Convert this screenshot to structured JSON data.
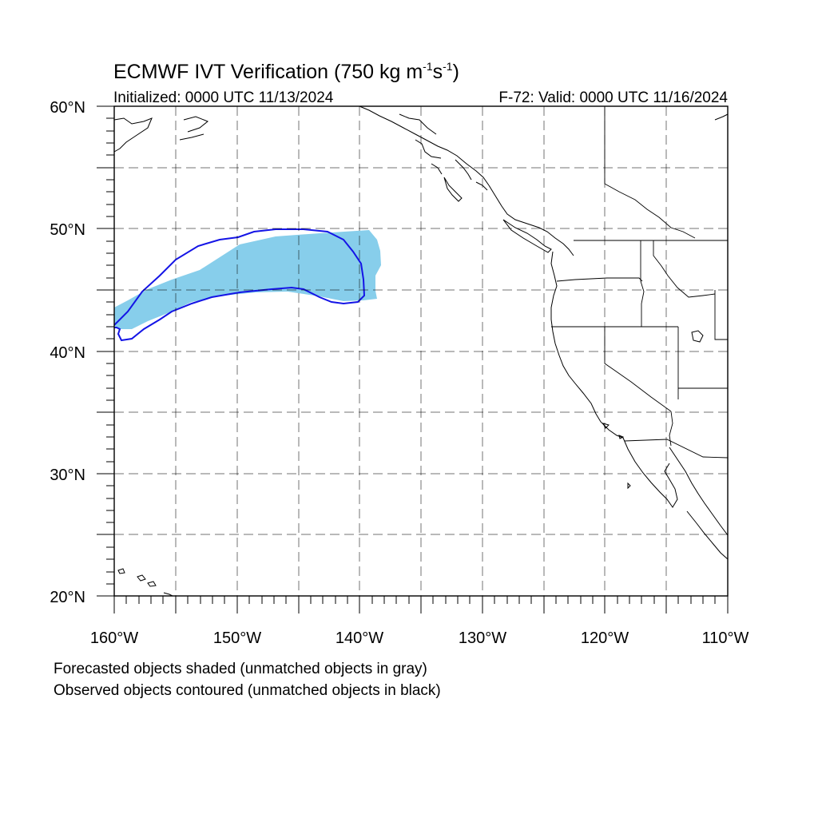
{
  "title": {
    "main": "ECMWF IVT Verification (750 kg m",
    "exp1": "-1",
    "mid": "s",
    "exp2": "-1",
    "close": ")"
  },
  "initialized": "Initialized: 0000 UTC 11/13/2024",
  "valid": "F-72: Valid: 0000 UTC 11/16/2024",
  "lat_labels": [
    "60°N",
    "50°N",
    "40°N",
    "30°N",
    "20°N"
  ],
  "lon_labels": [
    "160°W",
    "150°W",
    "140°W",
    "130°W",
    "120°W",
    "110°W"
  ],
  "legend": {
    "line1": "Forecasted objects shaded (unmatched objects in gray)",
    "line2": "Observed objects contoured (unmatched objects in black)"
  },
  "colors": {
    "forecast_fill": "#87ceeb",
    "observed_contour": "#1414e6"
  },
  "map_extent": {
    "lon": [
      -160,
      -110
    ],
    "lat": [
      20,
      60
    ],
    "grid_step_deg": 5
  }
}
